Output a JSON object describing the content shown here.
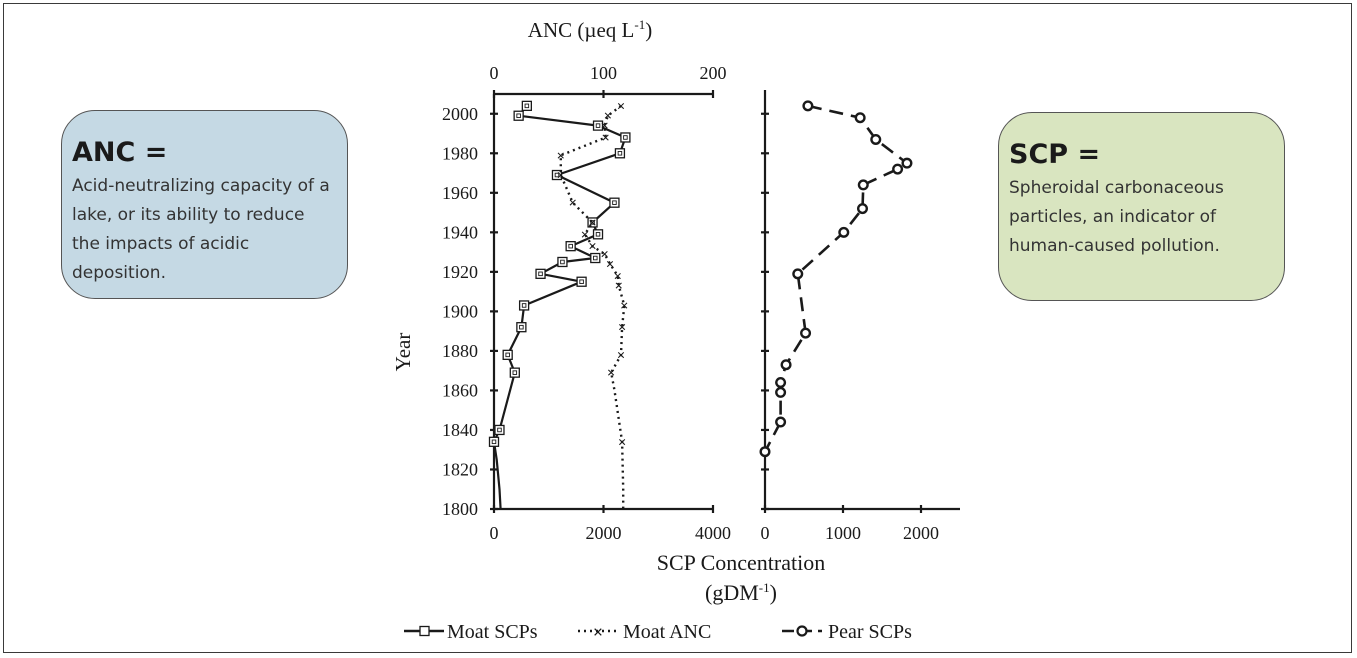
{
  "left_box": {
    "heading": "ANC =",
    "text": "Acid-neutralizing capacity of a lake, or its ability to reduce the impacts of acidic deposition."
  },
  "right_box": {
    "heading": "SCP =",
    "text": "Spheroidal carbonaceous particles, an indicator of human-caused pollution."
  },
  "chart_data": {
    "type": "line",
    "y_axis": {
      "label": "Year",
      "range": [
        1800,
        2010
      ],
      "ticks": [
        "2000",
        "1980",
        "1960",
        "1940",
        "1920",
        "1900",
        "1880",
        "1860",
        "1840",
        "1820",
        "1800"
      ]
    },
    "top_axis": {
      "label_main": "ANC (µeq L",
      "label_sup": "-1",
      "label_end": ")",
      "range": [
        0,
        200
      ],
      "ticks": [
        "0",
        "100",
        "200"
      ]
    },
    "bottom_axis_left": {
      "range": [
        0,
        4000
      ],
      "ticks": [
        "0",
        "2000",
        "4000"
      ]
    },
    "bottom_axis_right": {
      "range": [
        0,
        2500
      ],
      "ticks": [
        "0",
        "1000",
        "2000"
      ]
    },
    "bottom_label_line1": "SCP Concentration",
    "bottom_label_line2_main": "(gDM",
    "bottom_label_line2_sup": "-1",
    "bottom_label_line2_end": ")",
    "series": [
      {
        "name": "Moat SCPs",
        "axis": "bottom_left",
        "points": [
          [
            600,
            2004
          ],
          [
            450,
            1999
          ],
          [
            1900,
            1994
          ],
          [
            2400,
            1988
          ],
          [
            2300,
            1980
          ],
          [
            1150,
            1969
          ],
          [
            2200,
            1955
          ],
          [
            1800,
            1945
          ],
          [
            1900,
            1939
          ],
          [
            1400,
            1933
          ],
          [
            1850,
            1927
          ],
          [
            1250,
            1925
          ],
          [
            850,
            1919
          ],
          [
            1600,
            1915
          ],
          [
            550,
            1903
          ],
          [
            500,
            1892
          ],
          [
            250,
            1878
          ],
          [
            380,
            1869
          ],
          [
            100,
            1840
          ],
          [
            0,
            1834
          ],
          [
            50,
            1825
          ],
          [
            100,
            1810
          ],
          [
            120,
            1800
          ]
        ]
      },
      {
        "name": "Moat ANC",
        "axis": "top",
        "points": [
          [
            116,
            2004
          ],
          [
            104,
            1999
          ],
          [
            101,
            1994
          ],
          [
            102,
            1988
          ],
          [
            61,
            1979
          ],
          [
            61,
            1969
          ],
          [
            72,
            1955
          ],
          [
            90,
            1945
          ],
          [
            83,
            1939
          ],
          [
            90,
            1933
          ],
          [
            101,
            1929
          ],
          [
            106,
            1924
          ],
          [
            113,
            1918
          ],
          [
            114,
            1913
          ],
          [
            119,
            1903
          ],
          [
            117,
            1892
          ],
          [
            116,
            1878
          ],
          [
            107,
            1869
          ],
          [
            110,
            1860
          ],
          [
            117,
            1834
          ],
          [
            118,
            1810
          ],
          [
            118,
            1800
          ]
        ]
      },
      {
        "name": "Pear SCPs",
        "axis": "bottom_right",
        "points": [
          [
            550,
            2004
          ],
          [
            1220,
            1998
          ],
          [
            1420,
            1987
          ],
          [
            1820,
            1975
          ],
          [
            1700,
            1972
          ],
          [
            1260,
            1964
          ],
          [
            1250,
            1952
          ],
          [
            1010,
            1940
          ],
          [
            420,
            1919
          ],
          [
            520,
            1889
          ],
          [
            270,
            1873
          ],
          [
            200,
            1864
          ],
          [
            200,
            1859
          ],
          [
            200,
            1844
          ],
          [
            0,
            1829
          ]
        ]
      }
    ],
    "legend": [
      "Moat SCPs",
      "Moat ANC",
      "Pear SCPs"
    ],
    "legend_position": "bottom"
  }
}
